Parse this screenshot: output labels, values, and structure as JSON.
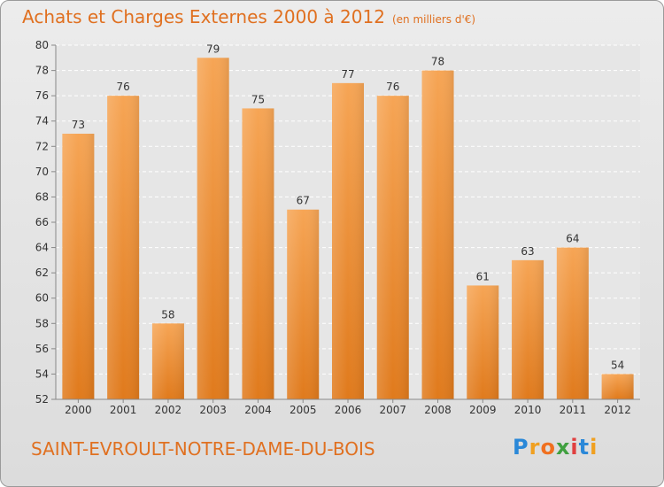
{
  "chart_data": {
    "type": "bar",
    "title": "Achats et Charges Externes 2000 à 2012",
    "subtitle": "(en milliers d'€)",
    "categories": [
      "2000",
      "2001",
      "2002",
      "2003",
      "2004",
      "2005",
      "2006",
      "2007",
      "2008",
      "2009",
      "2010",
      "2011",
      "2012"
    ],
    "values": [
      73,
      76,
      58,
      79,
      75,
      67,
      77,
      76,
      78,
      61,
      63,
      64,
      54
    ],
    "ylim": [
      52,
      80
    ],
    "yticks": [
      52,
      54,
      56,
      58,
      60,
      62,
      64,
      66,
      68,
      70,
      72,
      74,
      76,
      78,
      80
    ],
    "grid": true,
    "bar_color": "#f0923a"
  },
  "footer": {
    "place_name": "SAINT-EVROULT-NOTRE-DAME-DU-BOIS",
    "logo_text": "Proxiti"
  }
}
